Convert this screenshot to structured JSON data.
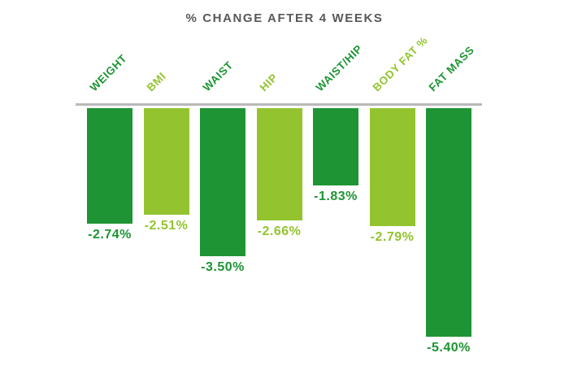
{
  "chart_data": {
    "type": "bar",
    "title": "% CHANGE AFTER 4 WEEKS",
    "categories": [
      "WEIGHT",
      "BMI",
      "WAIST",
      "HIP",
      "WAIST/HIP",
      "BODY FAT %",
      "FAT MASS"
    ],
    "values": [
      -2.74,
      -2.51,
      -3.5,
      -2.66,
      -1.83,
      -2.79,
      -5.4
    ],
    "value_labels": [
      "-2.74%",
      "-2.51%",
      "-3.50%",
      "-2.66%",
      "-1.83%",
      "-2.79%",
      "-5.40%"
    ],
    "bar_colors": [
      "#1e9434",
      "#93c42f",
      "#1e9434",
      "#93c42f",
      "#1e9434",
      "#93c42f",
      "#1e9434"
    ],
    "xlabel": "",
    "ylabel": "",
    "ylim": [
      -5.5,
      0
    ],
    "grid": false,
    "legend": "none",
    "baseline_axis": "top",
    "bar_orientation": "vertical-downward",
    "colors": {
      "dark_green": "#1e9434",
      "light_green": "#93c42f",
      "title_gray": "#58585a",
      "axis_line_gray": "#b9b9b9"
    }
  }
}
